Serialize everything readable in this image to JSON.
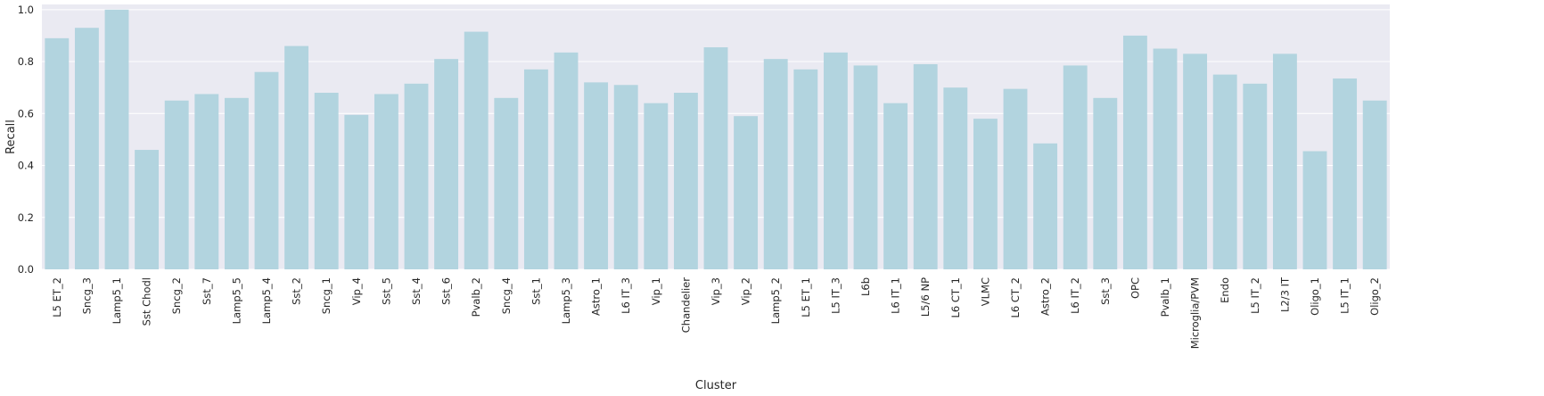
{
  "chart_data": {
    "type": "bar",
    "xlabel": "Cluster",
    "ylabel": "Recall",
    "ylim": [
      0,
      1.02
    ],
    "yticks": [
      "0.0",
      "0.2",
      "0.4",
      "0.6",
      "0.8",
      "1.0"
    ],
    "grid": true,
    "bar_color": "#b2d4df",
    "background_color": "#eaeaf2",
    "categories": [
      "L5 ET_2",
      "Sncg_3",
      "Lamp5_1",
      "Sst Chodl",
      "Sncg_2",
      "Sst_7",
      "Lamp5_5",
      "Lamp5_4",
      "Sst_2",
      "Sncg_1",
      "Vip_4",
      "Sst_5",
      "Sst_4",
      "Sst_6",
      "Pvalb_2",
      "Sncg_4",
      "Sst_1",
      "Lamp5_3",
      "Astro_1",
      "L6 IT_3",
      "Vip_1",
      "Chandelier",
      "Vip_3",
      "Vip_2",
      "Lamp5_2",
      "L5 ET_1",
      "L5 IT_3",
      "L6b",
      "L6 IT_1",
      "L5/6 NP",
      "L6 CT_1",
      "VLMC",
      "L6 CT_2",
      "Astro_2",
      "L6 IT_2",
      "Sst_3",
      "OPC",
      "Pvalb_1",
      "Microglia/PVM",
      "Endo",
      "L5 IT_2",
      "L2/3 IT",
      "Oligo_1",
      "L5 IT_1",
      "Oligo_2"
    ],
    "values": [
      0.89,
      0.93,
      1.0,
      0.46,
      0.65,
      0.675,
      0.66,
      0.76,
      0.86,
      0.68,
      0.595,
      0.675,
      0.715,
      0.81,
      0.915,
      0.66,
      0.77,
      0.835,
      0.72,
      0.71,
      0.64,
      0.68,
      0.855,
      0.59,
      0.81,
      0.77,
      0.835,
      0.785,
      0.64,
      0.79,
      0.7,
      0.58,
      0.695,
      0.485,
      0.785,
      0.66,
      0.9,
      0.85,
      0.83,
      0.75,
      0.715,
      0.83,
      0.455,
      0.735,
      0.65
    ]
  }
}
